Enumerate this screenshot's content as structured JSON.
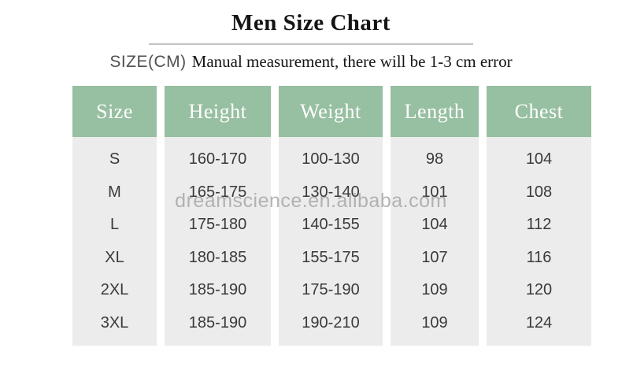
{
  "page": {
    "title": "Men Size Chart"
  },
  "subtitle": {
    "size_label": "SIZE(CM)",
    "note": "Manual measurement, there will be 1-3 cm error"
  },
  "watermark": "dreamscience.en.alibaba.com",
  "chart_data": {
    "type": "table",
    "title": "Men Size Chart",
    "unit": "cm",
    "columns": [
      "Size",
      "Height",
      "Weight",
      "Length",
      "Chest"
    ],
    "rows": [
      [
        "S",
        "160-170",
        "100-130",
        "98",
        "104"
      ],
      [
        "M",
        "165-175",
        "130-140",
        "101",
        "108"
      ],
      [
        "L",
        "175-180",
        "140-155",
        "104",
        "112"
      ],
      [
        "XL",
        "180-185",
        "155-175",
        "107",
        "116"
      ],
      [
        "2XL",
        "185-190",
        "175-190",
        "109",
        "120"
      ],
      [
        "3XL",
        "185-190",
        "190-210",
        "109",
        "124"
      ]
    ]
  },
  "colors": {
    "header_bg": "#97bfa1",
    "header_text": "#ffffff",
    "body_bg": "#ececec",
    "divider": "#c3c3c3",
    "data_text": "#3a3a3a",
    "watermark": "#9b9b9b"
  }
}
